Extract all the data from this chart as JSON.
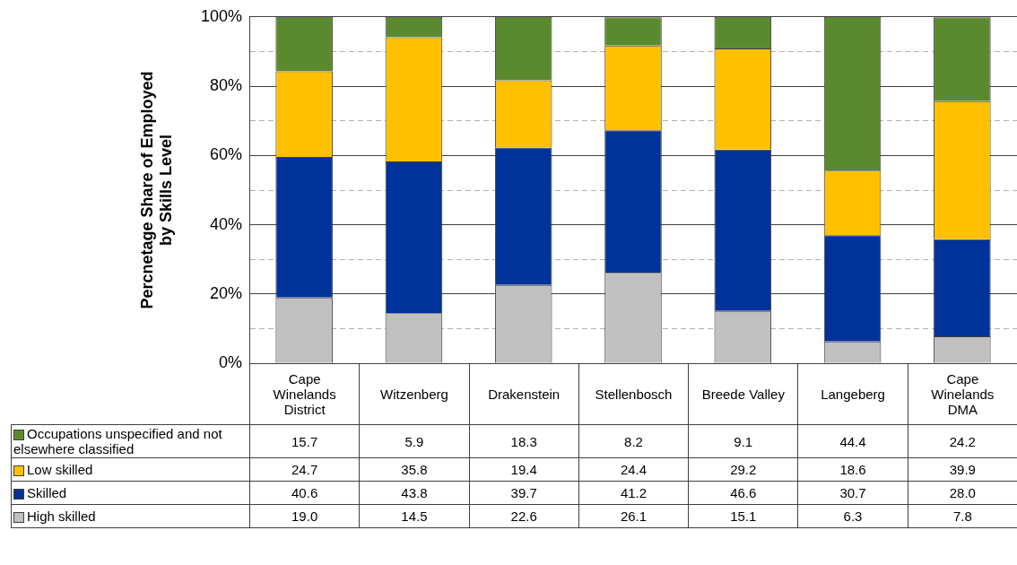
{
  "chart_data": {
    "type": "bar",
    "stacked": true,
    "ylabel": "Percnetage Share of Employed by Skills Level",
    "categories": [
      "Cape Winelands District",
      "Witzenberg",
      "Drakenstein",
      "Stellenbosch",
      "Breede Valley",
      "Langeberg",
      "Cape Winelands DMA"
    ],
    "series": [
      {
        "name": "High skilled",
        "color": "#c0c0c0",
        "values": [
          19.0,
          14.5,
          22.6,
          26.1,
          15.1,
          6.3,
          7.8
        ],
        "value_labels": [
          "19.0",
          "14.5",
          "22.6",
          "26.1",
          "15.1",
          "6.3",
          "7.8"
        ]
      },
      {
        "name": "Skilled",
        "color": "#003399",
        "values": [
          40.6,
          43.8,
          39.7,
          41.2,
          46.6,
          30.7,
          28.0
        ],
        "value_labels": [
          "40.6",
          "43.8",
          "39.7",
          "41.2",
          "46.6",
          "30.7",
          "28.0"
        ]
      },
      {
        "name": "Low skilled",
        "color": "#ffc000",
        "values": [
          24.7,
          35.8,
          19.4,
          24.4,
          29.2,
          18.6,
          39.9
        ],
        "value_labels": [
          "24.7",
          "35.8",
          "19.4",
          "24.4",
          "29.2",
          "18.6",
          "39.9"
        ]
      },
      {
        "name": "Occupations unspecified and not elsewhere classified",
        "color": "#5b8a2e",
        "values": [
          15.7,
          5.9,
          18.3,
          8.2,
          9.1,
          44.4,
          24.2
        ],
        "value_labels": [
          "15.7",
          "5.9",
          "18.3",
          "8.2",
          "9.1",
          "44.4",
          "24.2"
        ]
      }
    ],
    "ylim": [
      0,
      100
    ],
    "yticks": [
      {
        "value": 0,
        "label": "0%"
      },
      {
        "value": 10,
        "label": null
      },
      {
        "value": 20,
        "label": "20%"
      },
      {
        "value": 30,
        "label": null
      },
      {
        "value": 40,
        "label": "40%"
      },
      {
        "value": 50,
        "label": null
      },
      {
        "value": 60,
        "label": "60%"
      },
      {
        "value": 70,
        "label": null
      },
      {
        "value": 80,
        "label": "80%"
      },
      {
        "value": 90,
        "label": null
      },
      {
        "value": 100,
        "label": "100%"
      }
    ],
    "grid": "y",
    "legend": "bottom"
  }
}
